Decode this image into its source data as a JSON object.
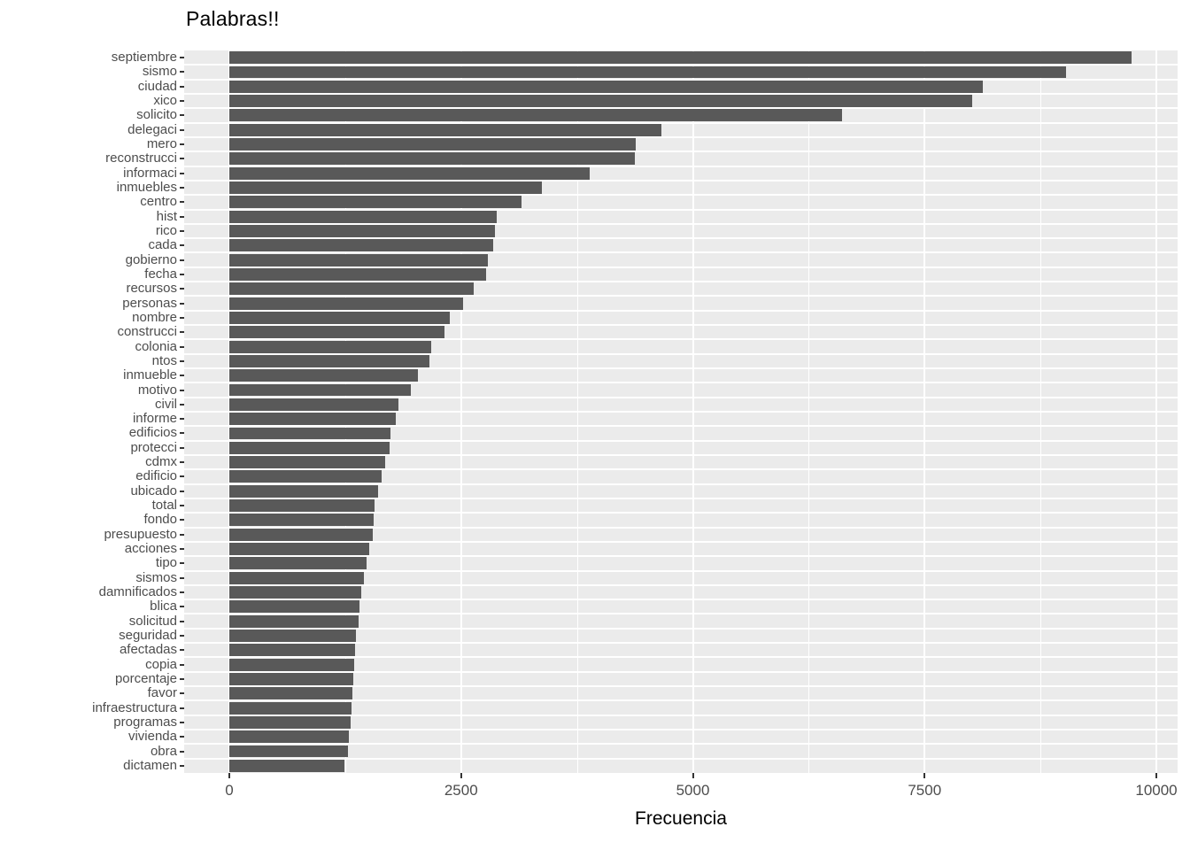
{
  "title": "Palabras!!",
  "chart_data": {
    "type": "bar",
    "orientation": "horizontal",
    "title": "Palabras!!",
    "xlabel": "Frecuencia",
    "ylabel": "",
    "xlim": [
      0,
      10000
    ],
    "x_ticks": [
      0,
      2500,
      5000,
      7500,
      10000
    ],
    "x_tick_labels": [
      "0",
      "2500",
      "5000",
      "7500",
      "10000"
    ],
    "x_minor_gridlines": [
      1250,
      3750,
      6250,
      8750
    ],
    "grid": true,
    "legend": false,
    "panel_bg": "#EBEBEB",
    "bar_color": "#595959",
    "gridline_color": "#ffffff",
    "axis_text_color": "#4d4d4d",
    "tick_color": "#333333",
    "categories": [
      "septiembre",
      "sismo",
      "ciudad",
      "xico",
      "solicito",
      "delegaci",
      "mero",
      "reconstrucci",
      "informaci",
      "inmuebles",
      "centro",
      "hist",
      "rico",
      "cada",
      "gobierno",
      "fecha",
      "recursos",
      "personas",
      "nombre",
      "construcci",
      "colonia",
      "ntos",
      "inmueble",
      "motivo",
      "civil",
      "informe",
      "edificios",
      "protecci",
      "cdmx",
      "edificio",
      "ubicado",
      "total",
      "fondo",
      "presupuesto",
      "acciones",
      "tipo",
      "sismos",
      "damnificados",
      "blica",
      "solicitud",
      "seguridad",
      "afectadas",
      "copia",
      "porcentaje",
      "favor",
      "infraestructura",
      "programas",
      "vivienda",
      "obra",
      "dictamen"
    ],
    "values": [
      9730,
      9030,
      8130,
      8010,
      6610,
      4660,
      4380,
      4370,
      3890,
      3370,
      3150,
      2880,
      2870,
      2850,
      2790,
      2770,
      2640,
      2520,
      2380,
      2320,
      2180,
      2160,
      2030,
      1960,
      1820,
      1800,
      1740,
      1730,
      1680,
      1640,
      1600,
      1570,
      1560,
      1550,
      1510,
      1480,
      1450,
      1420,
      1400,
      1390,
      1370,
      1360,
      1350,
      1340,
      1330,
      1320,
      1310,
      1290,
      1280,
      1240
    ]
  }
}
